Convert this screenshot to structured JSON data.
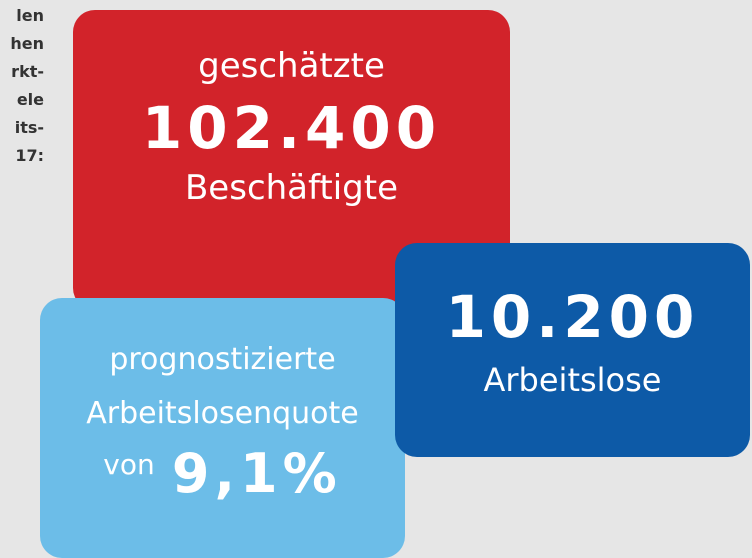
{
  "side_text": [
    "len",
    "hen",
    "rkt-",
    "ele",
    "its-",
    "17:"
  ],
  "employed": {
    "prefix": "geschätzte",
    "number": "102.400",
    "label": "Beschäftigte"
  },
  "rate": {
    "line1": "prognostizierte",
    "line2": "Arbeitslosenquote",
    "prefix": "von",
    "number": "9,1%"
  },
  "unemployed": {
    "number": "10.200",
    "label": "Arbeitslose"
  }
}
